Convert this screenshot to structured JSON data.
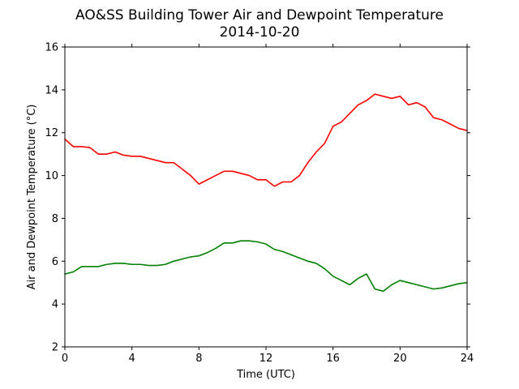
{
  "chart_data": {
    "type": "line",
    "title": "AO&SS Building Tower Air and Dewpoint Temperature",
    "subtitle": "2014-10-20",
    "xlabel": "Time (UTC)",
    "ylabel": "Air and Dewpoint Temperature (°C)",
    "xlim": [
      0,
      24
    ],
    "ylim": [
      2,
      16
    ],
    "xticks": [
      0,
      4,
      8,
      12,
      16,
      20,
      24
    ],
    "yticks": [
      2,
      4,
      6,
      8,
      10,
      12,
      14,
      16
    ],
    "grid": false,
    "legend": "none",
    "series": [
      {
        "color": "#ff0000",
        "x": [
          0,
          0.5,
          1,
          1.5,
          2,
          2.5,
          3,
          3.5,
          4,
          4.5,
          5,
          5.5,
          6,
          6.5,
          7,
          7.5,
          8,
          8.5,
          9,
          9.5,
          10,
          10.5,
          11,
          11.5,
          12,
          12.5,
          13,
          13.5,
          14,
          14.5,
          15,
          15.5,
          16,
          16.5,
          17,
          17.5,
          18,
          18.5,
          19,
          19.5,
          20,
          20.5,
          21,
          21.5,
          22,
          22.5,
          23,
          23.5,
          24
        ],
        "values": [
          11.7,
          11.35,
          11.35,
          11.3,
          11.0,
          11.0,
          11.1,
          10.95,
          10.9,
          10.9,
          10.8,
          10.7,
          10.6,
          10.6,
          10.3,
          10.0,
          9.6,
          9.8,
          10.0,
          10.2,
          10.2,
          10.1,
          10.0,
          9.8,
          9.8,
          9.5,
          9.7,
          9.7,
          10.0,
          10.6,
          11.1,
          11.5,
          12.3,
          12.5,
          12.9,
          13.3,
          13.5,
          13.8,
          13.7,
          13.6,
          13.7,
          13.3,
          13.4,
          13.2,
          12.7,
          12.6,
          12.4,
          12.2,
          12.1
        ]
      },
      {
        "color": "#008000",
        "x": [
          0,
          0.5,
          1,
          1.5,
          2,
          2.5,
          3,
          3.5,
          4,
          4.5,
          5,
          5.5,
          6,
          6.5,
          7,
          7.5,
          8,
          8.5,
          9,
          9.5,
          10,
          10.5,
          11,
          11.5,
          12,
          12.5,
          13,
          13.5,
          14,
          14.5,
          15,
          15.5,
          16,
          16.5,
          17,
          17.5,
          18,
          18.5,
          19,
          19.5,
          20,
          20.5,
          21,
          21.5,
          22,
          22.5,
          23,
          23.5,
          24
        ],
        "values": [
          5.4,
          5.5,
          5.75,
          5.75,
          5.75,
          5.85,
          5.9,
          5.9,
          5.85,
          5.85,
          5.8,
          5.8,
          5.85,
          6.0,
          6.1,
          6.2,
          6.25,
          6.4,
          6.6,
          6.85,
          6.85,
          6.95,
          6.95,
          6.9,
          6.8,
          6.55,
          6.45,
          6.3,
          6.15,
          6.0,
          5.9,
          5.65,
          5.3,
          5.1,
          4.9,
          5.2,
          5.4,
          4.7,
          4.6,
          4.9,
          5.1,
          5.0,
          4.9,
          4.8,
          4.7,
          4.75,
          4.85,
          4.95,
          5.0
        ]
      }
    ]
  }
}
